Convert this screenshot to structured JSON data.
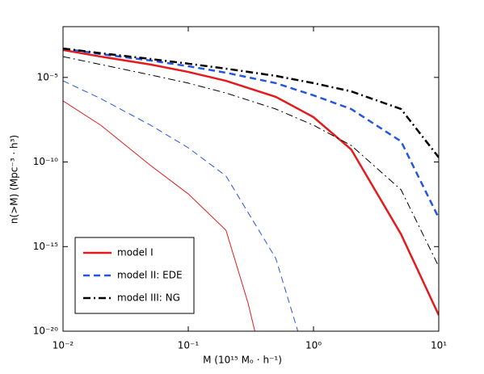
{
  "chart_data": {
    "type": "line",
    "xlabel": "M (10¹⁵ Mₒ · h⁻¹)",
    "ylabel": "n(>M) (Mpc⁻³ · h³)",
    "xscale": "log",
    "yscale": "log",
    "xlim": [
      0.01,
      10
    ],
    "ylim": [
      1e-20,
      0.01
    ],
    "xticks": [
      {
        "value": 0.01,
        "label": "10⁻²"
      },
      {
        "value": 0.1,
        "label": "10⁻¹"
      },
      {
        "value": 1,
        "label": "10⁰"
      },
      {
        "value": 10,
        "label": "10¹"
      }
    ],
    "yticks": [
      {
        "value": 1e-20,
        "label": "10⁻²⁰"
      },
      {
        "value": 1e-15,
        "label": "10⁻¹⁵"
      },
      {
        "value": 1e-10,
        "label": "10⁻¹⁰"
      },
      {
        "value": 1e-05,
        "label": "10⁻⁵"
      }
    ],
    "legend": "lower left",
    "series": [
      {
        "name": "model I",
        "color": "#e41a1c",
        "style": "solid",
        "linewidth": 2.5,
        "x": [
          0.01,
          0.02,
          0.05,
          0.1,
          0.2,
          0.5,
          1,
          2,
          5,
          10
        ],
        "values": [
          0.00042,
          0.00017,
          5.8e-05,
          2.1e-05,
          6.3e-06,
          7.1e-07,
          4.5e-08,
          5.5e-10,
          5.4e-15,
          8.9e-20
        ]
      },
      {
        "name": "model II: EDE",
        "color": "#2456e0",
        "style": "dashed",
        "linewidth": 2.5,
        "x": [
          0.01,
          0.02,
          0.05,
          0.1,
          0.2,
          0.5,
          1,
          2,
          5,
          10
        ],
        "values": [
          0.00051,
          0.00024,
          0.0001,
          4.6e-05,
          1.9e-05,
          4.6e-06,
          8.7e-07,
          1.35e-07,
          1.66e-09,
          4.9e-14
        ]
      },
      {
        "name": "model III: NG",
        "color": "#000000",
        "style": "dashdot",
        "linewidth": 2.5,
        "x": [
          0.01,
          0.02,
          0.05,
          0.1,
          0.2,
          0.5,
          1,
          2,
          5,
          10
        ],
        "values": [
          0.00051,
          0.00027,
          0.000123,
          6.5e-05,
          3.3e-05,
          1.23e-05,
          4.6e-06,
          1.5e-06,
          1.35e-07,
          1.86e-10
        ]
      },
      {
        "color": "#e41a1c",
        "style": "solid",
        "linewidth": 1,
        "x": [
          0.01,
          0.02,
          0.05,
          0.1,
          0.2,
          0.3,
          0.34
        ],
        "values": [
          4.1e-07,
          1.5e-08,
          6.2e-11,
          1.3e-12,
          9.3e-15,
          4.7e-19,
          1e-20
        ]
      },
      {
        "color": "#2456e0",
        "style": "dashed",
        "linewidth": 1,
        "x": [
          0.01,
          0.02,
          0.05,
          0.1,
          0.2,
          0.5,
          0.75
        ],
        "values": [
          6.3e-06,
          5.6e-07,
          1.5e-08,
          6.9e-10,
          1.5e-11,
          2e-16,
          1e-20
        ]
      },
      {
        "color": "#000000",
        "style": "dashdot",
        "linewidth": 1,
        "x": [
          0.01,
          0.02,
          0.05,
          0.1,
          0.2,
          0.5,
          1,
          2,
          5,
          10
        ],
        "values": [
          0.00017,
          5.8e-05,
          1.4e-05,
          4.6e-06,
          1.2e-06,
          1.35e-07,
          1.5e-08,
          9.5e-10,
          2.3e-12,
          6.6e-17
        ]
      }
    ]
  }
}
